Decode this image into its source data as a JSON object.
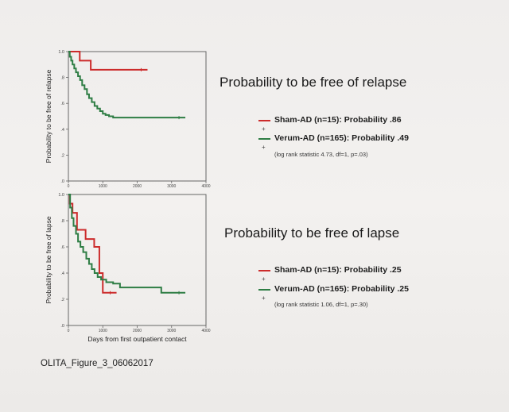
{
  "page": {
    "caption": "OLITA_Figure_3_06062017"
  },
  "colors": {
    "sham": "#cc2b2b",
    "verum": "#2e7d44",
    "axis": "#555555"
  },
  "chart_data": [
    {
      "type": "line",
      "subtype": "kaplan-meier",
      "title": "Probability to be free of relapse",
      "ylabel": "Probability to be free of relapse",
      "xlabel": "",
      "xlim": [
        0,
        4000
      ],
      "ylim": [
        0,
        1.0
      ],
      "x_ticks": [
        "0",
        "1000",
        "2000",
        "3000",
        "4000"
      ],
      "y_ticks": [
        ".0",
        ".2",
        ".4",
        ".6",
        ".8",
        "1.0"
      ],
      "grid": false,
      "series": [
        {
          "name": "Sham-AD (n=15): Probability .86",
          "color": "#cc2b2b",
          "x": [
            0,
            330,
            330,
            650,
            650,
            2300
          ],
          "y": [
            1.0,
            1.0,
            0.93,
            0.93,
            0.86,
            0.86
          ]
        },
        {
          "name": "Verum-AD (n=165): Probability .49",
          "color": "#2e7d44",
          "x": [
            0,
            40,
            80,
            120,
            170,
            220,
            280,
            340,
            400,
            470,
            540,
            600,
            680,
            760,
            840,
            920,
            1000,
            1080,
            1180,
            1300,
            1400,
            1600,
            2000,
            2500,
            3000,
            3400
          ],
          "y": [
            1.0,
            0.96,
            0.93,
            0.9,
            0.87,
            0.84,
            0.81,
            0.78,
            0.74,
            0.71,
            0.67,
            0.64,
            0.61,
            0.58,
            0.56,
            0.54,
            0.52,
            0.51,
            0.5,
            0.49,
            0.49,
            0.49,
            0.49,
            0.49,
            0.49,
            0.49
          ]
        }
      ],
      "stat": "(log rank statistic 4.73, df=1, p=.03)"
    },
    {
      "type": "line",
      "subtype": "kaplan-meier",
      "title": "Probability to be free of lapse",
      "ylabel": "Probability to be free of lapse",
      "xlabel": "Days from first outpatient contact",
      "xlim": [
        0,
        4000
      ],
      "ylim": [
        0,
        1.0
      ],
      "x_ticks": [
        "0",
        "1000",
        "2000",
        "3000",
        "4000"
      ],
      "y_ticks": [
        ".0",
        ".2",
        ".4",
        ".6",
        ".8",
        "1.0"
      ],
      "grid": false,
      "series": [
        {
          "name": "Sham-AD (n=15): Probability .25",
          "color": "#cc2b2b",
          "x": [
            0,
            40,
            40,
            120,
            120,
            250,
            250,
            500,
            500,
            750,
            750,
            900,
            900,
            1000,
            1000,
            1400
          ],
          "y": [
            1.0,
            1.0,
            0.93,
            0.93,
            0.86,
            0.86,
            0.73,
            0.73,
            0.66,
            0.66,
            0.6,
            0.6,
            0.4,
            0.4,
            0.25,
            0.25
          ]
        },
        {
          "name": "Verum-AD (n=165): Probability .25",
          "color": "#2e7d44",
          "x": [
            0,
            50,
            100,
            150,
            220,
            280,
            350,
            430,
            520,
            600,
            680,
            760,
            850,
            950,
            1100,
            1300,
            1500,
            1800,
            2200,
            2600,
            2700,
            3000,
            3400
          ],
          "y": [
            1.0,
            0.9,
            0.82,
            0.76,
            0.7,
            0.64,
            0.6,
            0.56,
            0.51,
            0.47,
            0.43,
            0.4,
            0.37,
            0.35,
            0.33,
            0.32,
            0.29,
            0.29,
            0.29,
            0.29,
            0.25,
            0.25,
            0.25
          ]
        }
      ],
      "stat": "(log rank statistic 1.06, df=1, p=.30)"
    }
  ]
}
